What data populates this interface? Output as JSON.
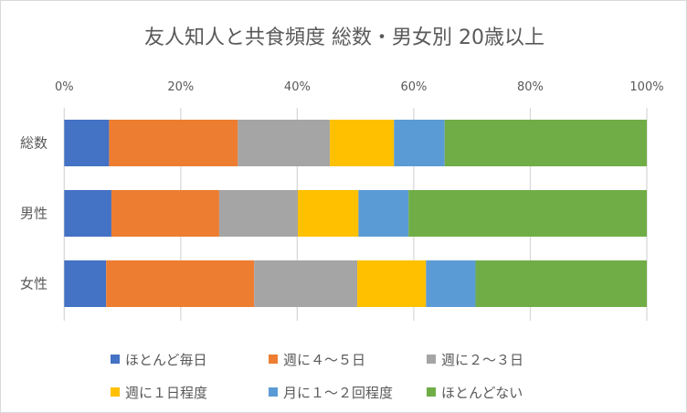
{
  "chart_data": {
    "type": "bar",
    "orientation": "horizontal",
    "stacked": "percent",
    "title": "友人知人と共食頻度 総数・男女別 20歳以上",
    "categories": [
      "総数",
      "男性",
      "女性"
    ],
    "xlim": [
      0,
      100
    ],
    "xticks": [
      "0%",
      "20%",
      "40%",
      "60%",
      "80%",
      "100%"
    ],
    "grid": true,
    "legend_position": "bottom",
    "series": [
      {
        "name": "ほとんど毎日",
        "color": "#4472c4",
        "values": [
          7.7,
          8.1,
          7.2
        ]
      },
      {
        "name": "週に４～５日",
        "color": "#ed7d31",
        "values": [
          22.1,
          18.5,
          25.4
        ]
      },
      {
        "name": "週に２～３日",
        "color": "#a5a5a5",
        "values": [
          15.8,
          13.5,
          17.7
        ]
      },
      {
        "name": "週に１日程度",
        "color": "#ffc000",
        "values": [
          11.0,
          10.4,
          11.8
        ]
      },
      {
        "name": "月に１～２回程度",
        "color": "#5b9bd5",
        "values": [
          8.7,
          8.6,
          8.5
        ]
      },
      {
        "name": "ほとんどない",
        "color": "#70ad47",
        "values": [
          34.7,
          40.9,
          29.4
        ]
      }
    ]
  }
}
